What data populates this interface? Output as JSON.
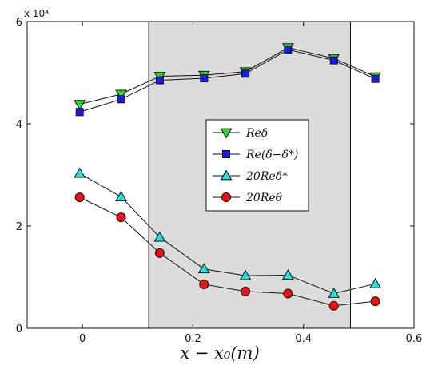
{
  "chart_data": {
    "type": "line",
    "xlabel": "x − x₀(m)",
    "ylabel": "",
    "xlim": [
      -0.1,
      0.6
    ],
    "ylim": [
      0,
      60000
    ],
    "xticks": [
      0,
      0.2,
      0.4,
      0.6
    ],
    "xtick_labels": [
      "0",
      "0.2",
      "0.4",
      "0.6"
    ],
    "yticks": [
      0,
      20000,
      40000,
      60000
    ],
    "ytick_labels": [
      "0",
      "2",
      "4",
      "6"
    ],
    "y_multiplier": "x 10⁴",
    "shaded_region": {
      "x": [
        0.12,
        0.485
      ],
      "color": "#dcdcdc"
    },
    "legend_position": "center",
    "x": [
      -0.005,
      0.07,
      0.14,
      0.22,
      0.295,
      0.372,
      0.455,
      0.53
    ],
    "series": [
      {
        "name": "Reδ",
        "marker": "triangle-down",
        "color": "#22dd22",
        "values": [
          43800,
          45800,
          49300,
          49500,
          50200,
          54900,
          52800,
          49200
        ]
      },
      {
        "name": "Re(δ−δ*)",
        "marker": "square",
        "color": "#1a1aee",
        "values": [
          42300,
          44800,
          48500,
          48900,
          49800,
          54500,
          52400,
          48800
        ]
      },
      {
        "name": "20Reδ*",
        "marker": "triangle-up",
        "color": "#22e0e0",
        "values": [
          30300,
          25700,
          17800,
          11600,
          10300,
          10400,
          6800,
          8700
        ]
      },
      {
        "name": "20Reθ",
        "marker": "circle",
        "color": "#ee1111",
        "values": [
          25600,
          21700,
          14700,
          8600,
          7200,
          6800,
          4400,
          5300
        ]
      }
    ]
  }
}
